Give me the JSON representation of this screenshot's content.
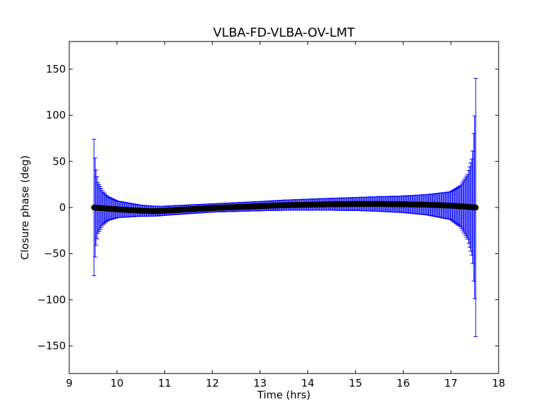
{
  "chart_data": {
    "type": "scatter",
    "title": "VLBA-FD-VLBA-OV-LMT",
    "xlabel": "Time (hrs)",
    "ylabel": "Closure phase (deg)",
    "xlim": [
      9,
      18
    ],
    "ylim": [
      -180,
      180
    ],
    "xticks": [
      9,
      10,
      11,
      12,
      13,
      14,
      15,
      16,
      17,
      18
    ],
    "yticks": [
      -150,
      -100,
      -50,
      0,
      50,
      100,
      150
    ],
    "xtick_labels": [
      "9",
      "10",
      "11",
      "12",
      "13",
      "14",
      "15",
      "16",
      "17",
      "18"
    ],
    "ytick_labels": [
      "−150",
      "−100",
      "−50",
      "0",
      "50",
      "100",
      "150"
    ],
    "grid": false,
    "series": [
      {
        "marker_color": "#000000",
        "errorbar_color": "#0000ff",
        "x_range": [
          9.52,
          17.52
        ],
        "phase_profile": [
          [
            9.52,
            0
          ],
          [
            10.0,
            -2.0
          ],
          [
            10.5,
            -3.5
          ],
          [
            10.8,
            -4.0
          ],
          [
            11.0,
            -3.5
          ],
          [
            11.5,
            -2.0
          ],
          [
            12.0,
            -0.5
          ],
          [
            12.5,
            0.5
          ],
          [
            13.0,
            1.5
          ],
          [
            13.5,
            2.5
          ],
          [
            14.0,
            3.0
          ],
          [
            14.5,
            3.5
          ],
          [
            15.0,
            3.8
          ],
          [
            15.5,
            3.8
          ],
          [
            16.0,
            3.5
          ],
          [
            16.5,
            3.0
          ],
          [
            17.0,
            2.0
          ],
          [
            17.3,
            1.0
          ],
          [
            17.52,
            0
          ]
        ],
        "error_profile": [
          [
            9.52,
            74
          ],
          [
            9.55,
            45
          ],
          [
            9.6,
            28
          ],
          [
            9.7,
            18
          ],
          [
            9.8,
            13
          ],
          [
            10.0,
            9
          ],
          [
            10.5,
            6
          ],
          [
            11.0,
            5
          ],
          [
            12.0,
            4.5
          ],
          [
            13.0,
            5
          ],
          [
            14.0,
            6
          ],
          [
            15.0,
            7
          ],
          [
            16.0,
            9
          ],
          [
            16.5,
            11
          ],
          [
            17.0,
            15
          ],
          [
            17.2,
            22
          ],
          [
            17.35,
            35
          ],
          [
            17.45,
            55
          ],
          [
            17.5,
            100
          ],
          [
            17.52,
            140
          ]
        ]
      }
    ]
  }
}
